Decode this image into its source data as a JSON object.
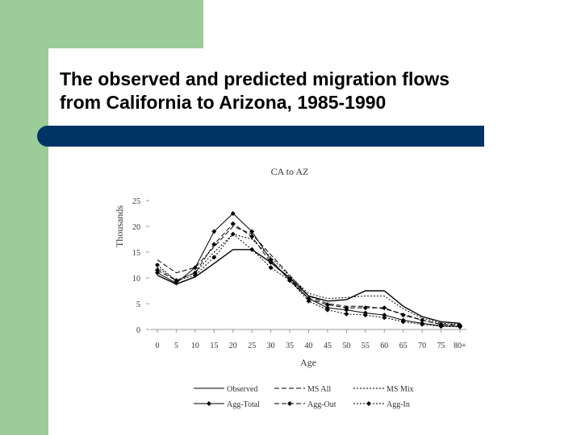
{
  "slide": {
    "title_line1": "The observed and predicted migration flows",
    "title_line2": "from California to Arizona, 1985-1990"
  },
  "colors": {
    "accent_green": "#9ccc98",
    "title_bar": "#003366"
  },
  "chart_data": {
    "type": "line",
    "title": "CA to AZ",
    "xlabel": "Age",
    "ylabel": "Thousands",
    "categories": [
      "0",
      "5",
      "10",
      "15",
      "20",
      "25",
      "30",
      "35",
      "40",
      "45",
      "50",
      "55",
      "60",
      "65",
      "70",
      "75",
      "80+"
    ],
    "ylim": [
      0,
      25
    ],
    "yticks": [
      "0",
      "5",
      "10",
      "15",
      "20",
      "25"
    ],
    "legend_position": "bottom",
    "grid": false,
    "series": [
      {
        "name": "Observed",
        "style": "solid",
        "marker": false,
        "values": [
          10.5,
          8.8,
          10.2,
          12.8,
          15.5,
          15.5,
          13.0,
          10.0,
          6.5,
          5.5,
          5.8,
          7.5,
          7.5,
          4.5,
          2.5,
          1.5,
          1.2
        ]
      },
      {
        "name": "MS All",
        "style": "dashed",
        "marker": false,
        "values": [
          13.5,
          11.0,
          12.0,
          16.0,
          20.0,
          18.5,
          14.5,
          10.5,
          6.5,
          5.0,
          4.5,
          4.5,
          4.0,
          3.0,
          1.8,
          1.0,
          0.8
        ]
      },
      {
        "name": "MS Mix",
        "style": "dotted",
        "marker": false,
        "values": [
          12.0,
          9.5,
          11.0,
          15.0,
          18.5,
          17.5,
          14.0,
          10.3,
          7.0,
          6.0,
          6.2,
          6.5,
          6.5,
          4.0,
          2.2,
          1.2,
          1.0
        ]
      },
      {
        "name": "Agg-Total",
        "style": "solid",
        "marker": true,
        "values": [
          11.0,
          9.0,
          12.0,
          19.0,
          22.5,
          19.0,
          13.5,
          9.5,
          6.0,
          4.2,
          3.8,
          3.2,
          2.8,
          1.8,
          1.2,
          0.7,
          0.6
        ]
      },
      {
        "name": "Agg-Out",
        "style": "dashed",
        "marker": true,
        "values": [
          11.5,
          9.5,
          11.0,
          16.5,
          20.5,
          18.0,
          13.0,
          9.8,
          6.0,
          4.8,
          4.2,
          4.2,
          4.2,
          2.8,
          1.8,
          1.0,
          0.8
        ]
      },
      {
        "name": "Agg-In",
        "style": "dotted",
        "marker": true,
        "values": [
          12.5,
          9.5,
          10.5,
          14.0,
          18.5,
          15.5,
          12.0,
          9.5,
          5.5,
          3.8,
          3.0,
          2.8,
          2.3,
          1.5,
          1.0,
          0.6,
          0.5
        ]
      }
    ]
  }
}
